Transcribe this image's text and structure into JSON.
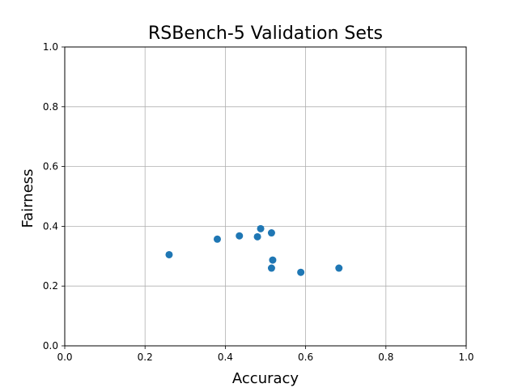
{
  "chart_data": {
    "type": "scatter",
    "title": "RSBench-5 Validation Sets",
    "xlabel": "Accuracy",
    "ylabel": "Fairness",
    "xlim": [
      0,
      1
    ],
    "ylim": [
      0,
      1
    ],
    "grid": true,
    "x_ticks": [
      "0.0",
      "0.2",
      "0.4",
      "0.6",
      "0.8",
      "1.0"
    ],
    "y_ticks": [
      "0.0",
      "0.2",
      "0.4",
      "0.6",
      "0.8",
      "1.0"
    ],
    "point_color": "#1f77b4",
    "points": [
      {
        "x": 0.26,
        "y": 0.305
      },
      {
        "x": 0.38,
        "y": 0.357
      },
      {
        "x": 0.435,
        "y": 0.368
      },
      {
        "x": 0.48,
        "y": 0.365
      },
      {
        "x": 0.488,
        "y": 0.392
      },
      {
        "x": 0.515,
        "y": 0.378
      },
      {
        "x": 0.518,
        "y": 0.287
      },
      {
        "x": 0.515,
        "y": 0.26
      },
      {
        "x": 0.588,
        "y": 0.246
      },
      {
        "x": 0.683,
        "y": 0.26
      }
    ]
  }
}
